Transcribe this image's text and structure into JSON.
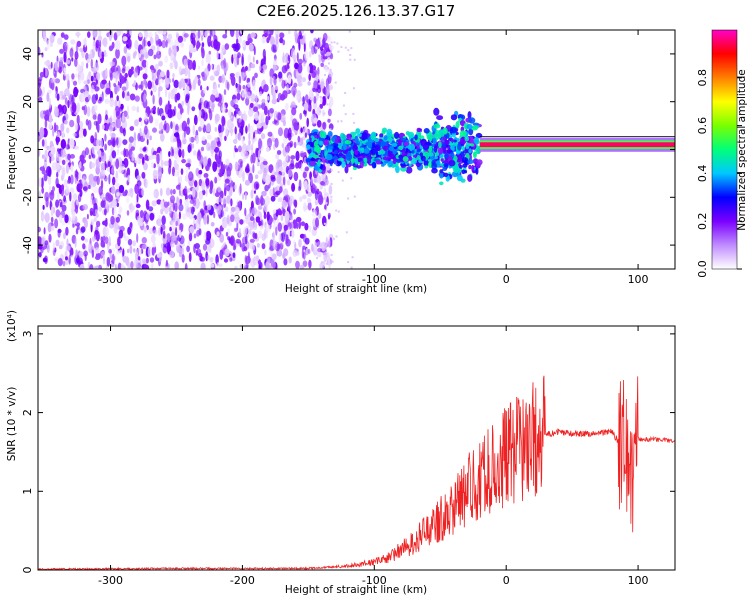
{
  "title": "C2E6.2025.126.13.37.G17",
  "chart_data": [
    {
      "type": "heatmap",
      "xlabel": "Height of straight line (km)",
      "ylabel": "Frequency (Hz)",
      "xlim": [
        -355,
        128
      ],
      "ylim": [
        -50,
        50
      ],
      "x_ticks": [
        -300,
        -200,
        -100,
        0,
        100
      ],
      "y_ticks": [
        -40,
        -20,
        0,
        20,
        40
      ],
      "colorbar": {
        "label": "Normalized spectral amplitude",
        "range": [
          0,
          1
        ],
        "ticks": [
          "0.0",
          "0.2",
          "0.4",
          "0.6",
          "0.8"
        ],
        "tick_values": [
          0.0,
          0.2,
          0.4,
          0.6,
          0.8
        ],
        "colors": [
          "#ffffff",
          "#c08cff",
          "#7a00ff",
          "#0000ff",
          "#00c8ff",
          "#00ff7a",
          "#7aff00",
          "#ffff00",
          "#ff8000",
          "#ff0000",
          "#ff00c8"
        ]
      },
      "regions": [
        {
          "name": "noise",
          "x_range": [
            -355,
            -140
          ],
          "f_range": [
            -50,
            50
          ],
          "amplitude": 0.1
        },
        {
          "name": "broad_signal",
          "x_range": [
            -150,
            -20
          ],
          "f_center": 0,
          "f_halfwidth": 5,
          "amplitude": 0.35
        },
        {
          "name": "narrow_tone",
          "x_range": [
            -20,
            128
          ],
          "f_center": 2,
          "f_halfwidth": 1,
          "amplitude": 0.95
        }
      ]
    },
    {
      "type": "line",
      "xlabel": "Height of straight line (km)",
      "ylabel": "SNR (10 * v/v)",
      "y_multiplier": "(x10⁴)",
      "xlim": [
        -355,
        128
      ],
      "ylim": [
        0,
        3.1
      ],
      "x_ticks": [
        -300,
        -200,
        -100,
        0,
        100
      ],
      "y_ticks": [
        0,
        1,
        2,
        3
      ],
      "series": [
        {
          "color": "#ee2222",
          "x": [
            -355,
            -250,
            -150,
            -120,
            -100,
            -90,
            -80,
            -70,
            -60,
            -50,
            -40,
            -30,
            -20,
            -10,
            0,
            10,
            20,
            30,
            40,
            50,
            60,
            70,
            80,
            90,
            95,
            100,
            110,
            128
          ],
          "y": [
            0.01,
            0.02,
            0.02,
            0.05,
            0.1,
            0.15,
            0.25,
            0.35,
            0.5,
            0.65,
            0.8,
            1.0,
            1.15,
            1.3,
            1.45,
            1.55,
            1.65,
            1.72,
            1.75,
            1.74,
            1.73,
            1.74,
            1.76,
            1.5,
            1.3,
            1.66,
            1.66,
            1.64
          ]
        }
      ]
    }
  ]
}
